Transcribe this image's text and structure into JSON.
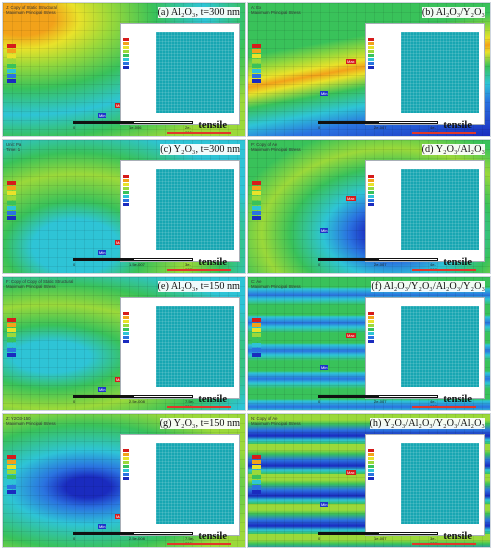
{
  "panels": [
    {
      "caption": "(a) Al₂O₃, t=300 nm",
      "title": "J: Copy of Static Structural",
      "subtitle": "Maximum Principal Stress",
      "scale": [
        "0",
        "1e-006",
        "2e-006 (m)"
      ],
      "tensile": "tensile",
      "max_tag": "Max",
      "min_tag": "Min"
    },
    {
      "caption": "(b) Al₂O₃/Y₂O₃",
      "title": "A: Ex",
      "subtitle": "Maximum Principal Stress",
      "scale": [
        "0",
        "2e-007",
        "4e-007 (m)"
      ],
      "tensile": "tensile",
      "max_tag": "Max",
      "min_tag": "Min"
    },
    {
      "caption": "(c) Y₂O₃, t=300 nm",
      "title": "Unit: Pa",
      "subtitle": "Time: 1",
      "scale": [
        "0",
        "1.5e-007",
        "3e-007 (m)"
      ],
      "tensile": "tensile",
      "max_tag": "Max",
      "min_tag": "Min"
    },
    {
      "caption": "(d) Y₂O₃/Al₂O₃",
      "title": "P: Copy of Ae",
      "subtitle": "Maximum Principal Stress",
      "scale": [
        "0",
        "2e-007",
        "4e-007 (m)"
      ],
      "tensile": "tensile",
      "max_tag": "Max",
      "min_tag": "Min"
    },
    {
      "caption": "(e) Al₂O₃, t=150 nm",
      "title": "F: Copy of Copy of Static Structural",
      "subtitle": "Maximum Principal Stress",
      "scale": [
        "0",
        "2.5e-008",
        "7.5e-008"
      ],
      "tensile": "tensile",
      "max_tag": "Max",
      "min_tag": "Min"
    },
    {
      "caption": "(f) Al₂O₃/Y₂O₃/Al₂O₃/Y₂O₃",
      "title": "C: Ae",
      "subtitle": "Maximum Principal Stress",
      "scale": [
        "0",
        "2e-007",
        "4e-007 (m)"
      ],
      "tensile": "tensile",
      "max_tag": "Max",
      "min_tag": "Min"
    },
    {
      "caption": "(g) Y₂O₃, t=150 nm",
      "title": "Z: Y2O3-150",
      "subtitle": "Maximum Principal Stress",
      "scale": [
        "0",
        "2.5e-008",
        "7.5e-008"
      ],
      "tensile": "tensile",
      "max_tag": "Max",
      "min_tag": "Min"
    },
    {
      "caption": "(h) Y₂O₃/Al₂O₃/Y₂O₃/Al₂O₃",
      "title": "N: Copy of Ae",
      "subtitle": "Maximum Principal Stress",
      "scale": [
        "0",
        "1e-007",
        "3e-007"
      ],
      "tensile": "tensile",
      "max_tag": "Max",
      "min_tag": "Min"
    }
  ],
  "colors": {
    "red": "#d61b1b",
    "orange": "#f2a21a",
    "yellow": "#e9e22a",
    "lime": "#9bd93a",
    "green": "#39c25a",
    "cyan": "#2ec4d6",
    "blue": "#2a73e0",
    "navy": "#1a2bbf",
    "line": "#e0372a"
  }
}
